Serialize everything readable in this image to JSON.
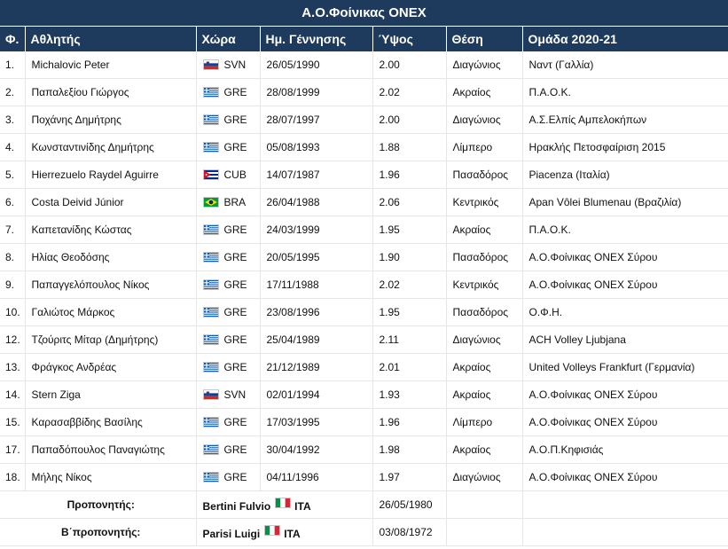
{
  "title": "Α.Ο.Φοίνικας ΟΝΕΧ",
  "columns": [
    "Φ.",
    "Αθλητής",
    "Χώρα",
    "Ημ. Γέννησης",
    "Ύψος",
    "Θέση",
    "Ομάδα 2020-21"
  ],
  "players": [
    {
      "num": "1.",
      "name": "Michalovic Peter",
      "flag": "svn-flag-icon",
      "country": "SVN",
      "dob": "26/05/1990",
      "height": "2.00",
      "position": "Διαγώνιος",
      "team": "Ναντ (Γαλλία)"
    },
    {
      "num": "2.",
      "name": "Παπαλεξίου Γιώργος",
      "flag": "gre-flag-icon",
      "country": "GRE",
      "dob": "28/08/1999",
      "height": "2.02",
      "position": "Ακραίος",
      "team": "Π.Α.Ο.Κ."
    },
    {
      "num": "3.",
      "name": "Ποχάνης Δημήτρης",
      "flag": "gre-flag-icon",
      "country": "GRE",
      "dob": "28/07/1997",
      "height": "2.00",
      "position": "Διαγώνιος",
      "team": "Α.Σ.Ελπίς Αμπελοκήπων"
    },
    {
      "num": "4.",
      "name": "Κωνσταντινίδης Δημήτρης",
      "flag": "gre-flag-icon",
      "country": "GRE",
      "dob": "05/08/1993",
      "height": "1.88",
      "position": "Λίμπερο",
      "team": "Ηρακλής Πετοσφαίριση 2015"
    },
    {
      "num": "5.",
      "name": "Hierrezuelo Raydel Aguirre",
      "flag": "cub-flag-icon",
      "country": "CUB",
      "dob": "14/07/1987",
      "height": "1.96",
      "position": "Πασαδόρος",
      "team": "Piacenza (Ιταλία)"
    },
    {
      "num": "6.",
      "name": "Costa Deivid Júnior",
      "flag": "bra-flag-icon",
      "country": "BRA",
      "dob": "26/04/1988",
      "height": "2.06",
      "position": "Κεντρικός",
      "team": "Apan Vôlei Blumenau (Βραζιλία)"
    },
    {
      "num": "7.",
      "name": "Καπετανίδης Κώστας",
      "flag": "gre-flag-icon",
      "country": "GRE",
      "dob": "24/03/1999",
      "height": "1.95",
      "position": "Ακραίος",
      "team": "Π.Α.Ο.Κ."
    },
    {
      "num": "8.",
      "name": "Ηλίας Θεοδόσης",
      "flag": "gre-flag-icon",
      "country": "GRE",
      "dob": "20/05/1995",
      "height": "1.90",
      "position": "Πασαδόρος",
      "team": "Α.Ο.Φοίνικας ΟΝΕΧ Σύρου"
    },
    {
      "num": "9.",
      "name": "Παπαγγελόπουλος Νίκος",
      "flag": "gre-flag-icon",
      "country": "GRE",
      "dob": "17/11/1988",
      "height": "2.02",
      "position": "Κεντρικός",
      "team": "Α.Ο.Φοίνικας ΟΝΕΧ Σύρου"
    },
    {
      "num": "10.",
      "name": "Γαλιώτος Μάρκος",
      "flag": "gre-flag-icon",
      "country": "GRE",
      "dob": "23/08/1996",
      "height": "1.95",
      "position": "Πασαδόρος",
      "team": "Ο.Φ.Η."
    },
    {
      "num": "12.",
      "name": "Τζούριτς Μίταρ (Δημήτρης)",
      "flag": "gre-flag-icon",
      "country": "GRE",
      "dob": "25/04/1989",
      "height": "2.11",
      "position": "Διαγώνιος",
      "team": "ACH Volley Ljubjana"
    },
    {
      "num": "13.",
      "name": "Φράγκος Ανδρέας",
      "flag": "gre-flag-icon",
      "country": "GRE",
      "dob": "21/12/1989",
      "height": "2.01",
      "position": "Ακραίος",
      "team": "United Volleys Frankfurt (Γερμανία)"
    },
    {
      "num": "14.",
      "name": "Stern Ziga",
      "flag": "svn-flag-icon",
      "country": "SVN",
      "dob": "02/01/1994",
      "height": "1.93",
      "position": "Ακραίος",
      "team": "Α.Ο.Φοίνικας ΟΝΕΧ Σύρου"
    },
    {
      "num": "15.",
      "name": "Καρασαββίδης Βασίλης",
      "flag": "gre-flag-icon",
      "country": "GRE",
      "dob": "17/03/1995",
      "height": "1.96",
      "position": "Λίμπερο",
      "team": "Α.Ο.Φοίνικας ΟΝΕΧ Σύρου"
    },
    {
      "num": "17.",
      "name": "Παπαδόπουλος Παναγιώτης",
      "flag": "gre-flag-icon",
      "country": "GRE",
      "dob": "30/04/1992",
      "height": "1.98",
      "position": "Ακραίος",
      "team": "Α.Ο.Π.Κηφισιάς"
    },
    {
      "num": "18.",
      "name": "Μήλης Νίκος",
      "flag": "gre-flag-icon",
      "country": "GRE",
      "dob": "04/11/1996",
      "height": "1.97",
      "position": "Διαγώνιος",
      "team": "Α.Ο.Φοίνικας ΟΝΕΧ Σύρου"
    }
  ],
  "staff": [
    {
      "label": "Προπονητής:",
      "name": "Bertini Fulvio",
      "flag": "ita-flag-icon",
      "country": "ITA",
      "dob": "26/05/1980"
    },
    {
      "label": "Β΄προπονητής:",
      "name": "Parisi Luigi",
      "flag": "ita-flag-icon",
      "country": "ITA",
      "dob": "03/08/1972"
    }
  ],
  "colors": {
    "header_bg": "#1e3a5c",
    "header_text": "#ffffff",
    "grid": "#e6e6e6"
  }
}
